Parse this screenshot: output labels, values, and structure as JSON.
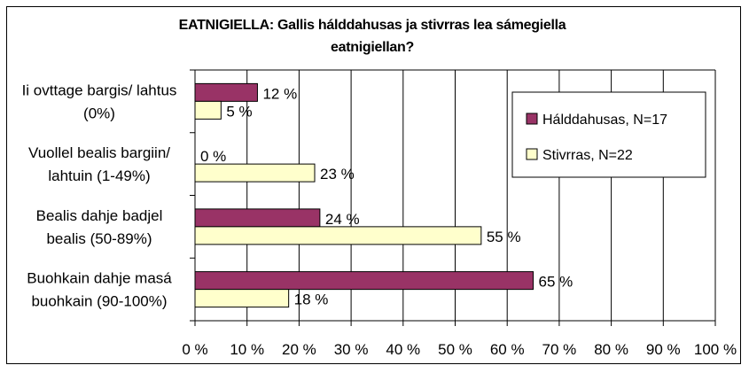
{
  "chart_data": {
    "type": "bar",
    "orientation": "horizontal",
    "title_line1": "EATNIGIELLA: Gallis hálddahusas ja stivrras lea sámegiella",
    "title_line2": "eatnigiellan?",
    "categories": [
      [
        "Ii ovttage bargis/ lahtus",
        "(0%)"
      ],
      [
        "Vuollel bealis bargiin/",
        "lahtuin (1-49%)"
      ],
      [
        "Bealis dahje badjel",
        "bealis (50-89%)"
      ],
      [
        "Buohkain dahje masá",
        "buohkain (90-100%)"
      ]
    ],
    "series": [
      {
        "name": "Hálddahusas, N=17",
        "color": "#993366",
        "values": [
          12,
          0,
          24,
          65
        ],
        "labels": [
          "12 %",
          "0 %",
          "24 %",
          "65 %"
        ]
      },
      {
        "name": "Stivrras, N=22",
        "color": "#FFFFCC",
        "values": [
          5,
          23,
          55,
          18
        ],
        "labels": [
          "5 %",
          "23 %",
          "55 %",
          "18 %"
        ]
      }
    ],
    "xlim": [
      0,
      100
    ],
    "xticks": [
      0,
      10,
      20,
      30,
      40,
      50,
      60,
      70,
      80,
      90,
      100
    ],
    "xtick_labels": [
      "0 %",
      "10 %",
      "20 %",
      "30 %",
      "40 %",
      "50 %",
      "60 %",
      "70 %",
      "80 %",
      "90 %",
      "100 %"
    ],
    "grid": true,
    "legend_position": "right"
  }
}
